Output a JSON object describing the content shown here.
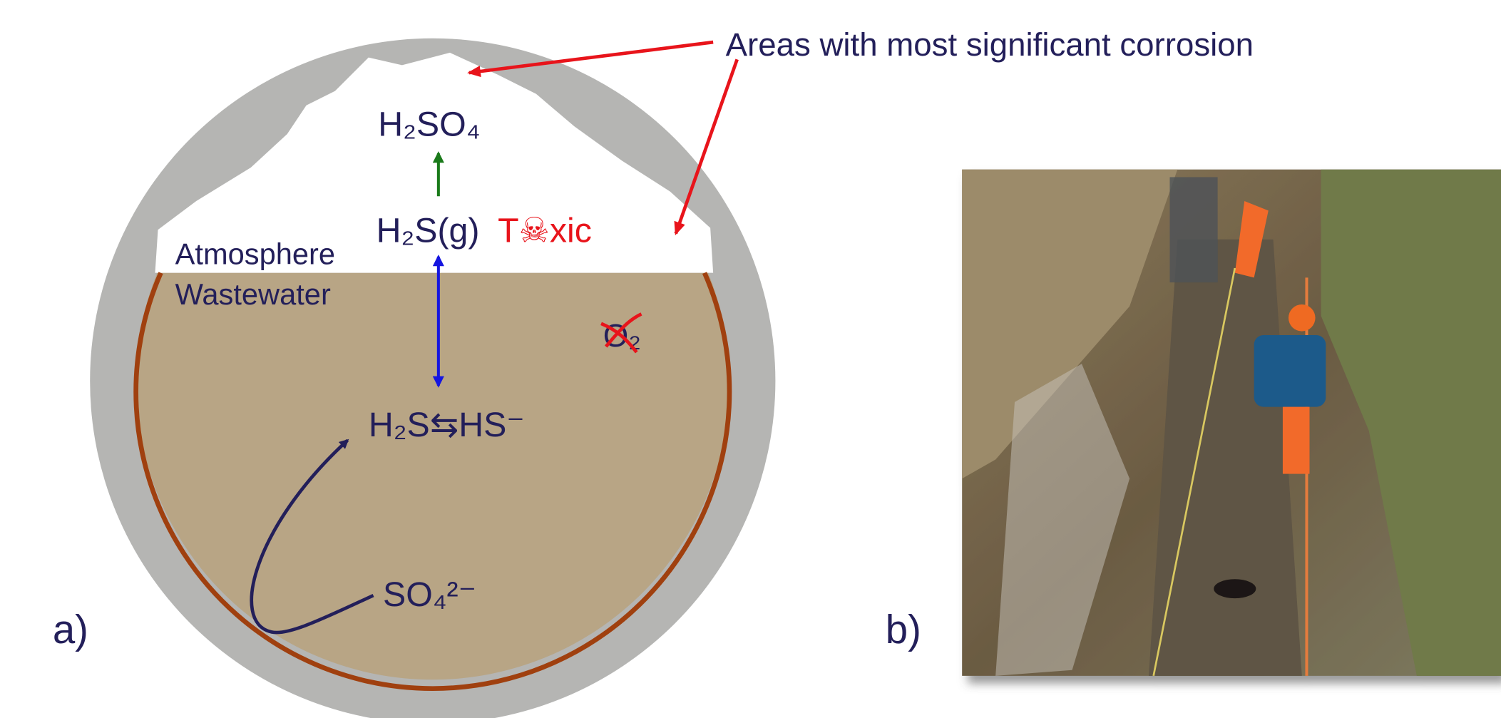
{
  "diagram": {
    "callout": "Areas with most significant corrosion",
    "panel_a": "a)",
    "panel_b": "b)",
    "atmosphere": "Atmosphere",
    "wastewater": "Wastewater",
    "h2so4": "H₂SO₄",
    "h2s_gas": "H₂S(g)",
    "toxic": "T☠xic",
    "o2": "O₂",
    "equilibrium": "H₂S⇆HS⁻",
    "sulfate": "SO₄²⁻"
  }
}
